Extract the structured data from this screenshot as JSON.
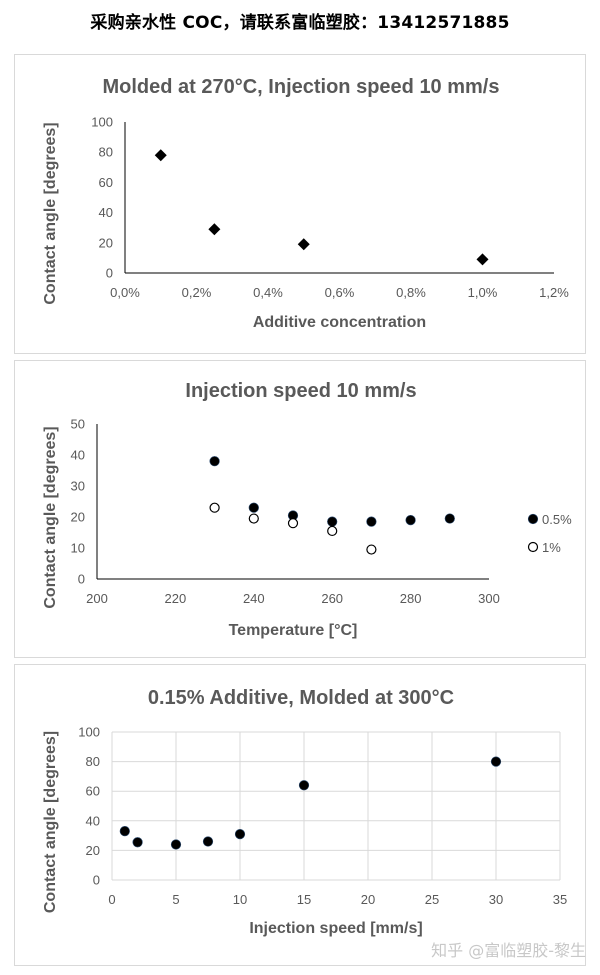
{
  "header": {
    "text": "采购亲水性 COC，请联系富临塑胶：13412571885"
  },
  "watermark": {
    "text": "知乎 @富临塑胶-黎生"
  },
  "colors": {
    "axis_text": "#595959",
    "grid": "#d9d9d9",
    "marker": "#000000"
  },
  "chart_data": [
    {
      "type": "scatter",
      "title": "Molded at 270°C, Injection speed 10 mm/s",
      "xlabel": "Additive concentration",
      "ylabel": "Contact angle [degrees]",
      "xlim": [
        0,
        1.2
      ],
      "ylim": [
        0,
        100
      ],
      "xticks": [
        0,
        0.2,
        0.4,
        0.6,
        0.8,
        1.0,
        1.2
      ],
      "xtick_labels": [
        "0,0%",
        "0,2%",
        "0,4%",
        "0,6%",
        "0,8%",
        "1,0%",
        "1,2%"
      ],
      "yticks": [
        0,
        20,
        40,
        60,
        80,
        100
      ],
      "ytick_labels": [
        "0",
        "20",
        "40",
        "60",
        "80",
        "100"
      ],
      "grid": false,
      "series": [
        {
          "name": "",
          "marker": "diamond",
          "x": [
            0.1,
            0.25,
            0.5,
            1.0
          ],
          "y": [
            78,
            29,
            19,
            9
          ]
        }
      ]
    },
    {
      "type": "scatter",
      "title": "Injection speed 10 mm/s",
      "xlabel": "Temperature [°C]",
      "ylabel": "Contact angle [degrees]",
      "xlim": [
        200,
        300
      ],
      "ylim": [
        0,
        50
      ],
      "xticks": [
        200,
        220,
        240,
        260,
        280,
        300
      ],
      "xtick_labels": [
        "200",
        "220",
        "240",
        "260",
        "280",
        "300"
      ],
      "yticks": [
        0,
        10,
        20,
        30,
        40,
        50
      ],
      "ytick_labels": [
        "0",
        "10",
        "20",
        "30",
        "40",
        "50"
      ],
      "grid": false,
      "legend_position": "right",
      "series": [
        {
          "name": "0.5%",
          "marker": "filled-circle",
          "x": [
            230,
            240,
            250,
            260,
            270,
            280,
            290
          ],
          "y": [
            38,
            23,
            20.5,
            18.5,
            18.5,
            19,
            19.5
          ]
        },
        {
          "name": "1%",
          "marker": "open-circle",
          "x": [
            230,
            240,
            250,
            260,
            270
          ],
          "y": [
            23,
            19.5,
            18,
            15.5,
            9.5
          ]
        }
      ]
    },
    {
      "type": "scatter",
      "title": "0.15% Additive, Molded at 300°C",
      "xlabel": "Injection speed [mm/s]",
      "ylabel": "Contact angle [degrees]",
      "xlim": [
        0,
        35
      ],
      "ylim": [
        0,
        100
      ],
      "xticks": [
        0,
        5,
        10,
        15,
        20,
        25,
        30,
        35
      ],
      "xtick_labels": [
        "0",
        "5",
        "10",
        "15",
        "20",
        "25",
        "30",
        "35"
      ],
      "yticks": [
        0,
        20,
        40,
        60,
        80,
        100
      ],
      "ytick_labels": [
        "0",
        "20",
        "40",
        "60",
        "80",
        "100"
      ],
      "grid": true,
      "series": [
        {
          "name": "",
          "marker": "filled-circle",
          "x": [
            1,
            2,
            5,
            7.5,
            10,
            15,
            30
          ],
          "y": [
            33,
            25.5,
            24,
            26,
            31,
            64,
            80
          ]
        }
      ]
    }
  ]
}
